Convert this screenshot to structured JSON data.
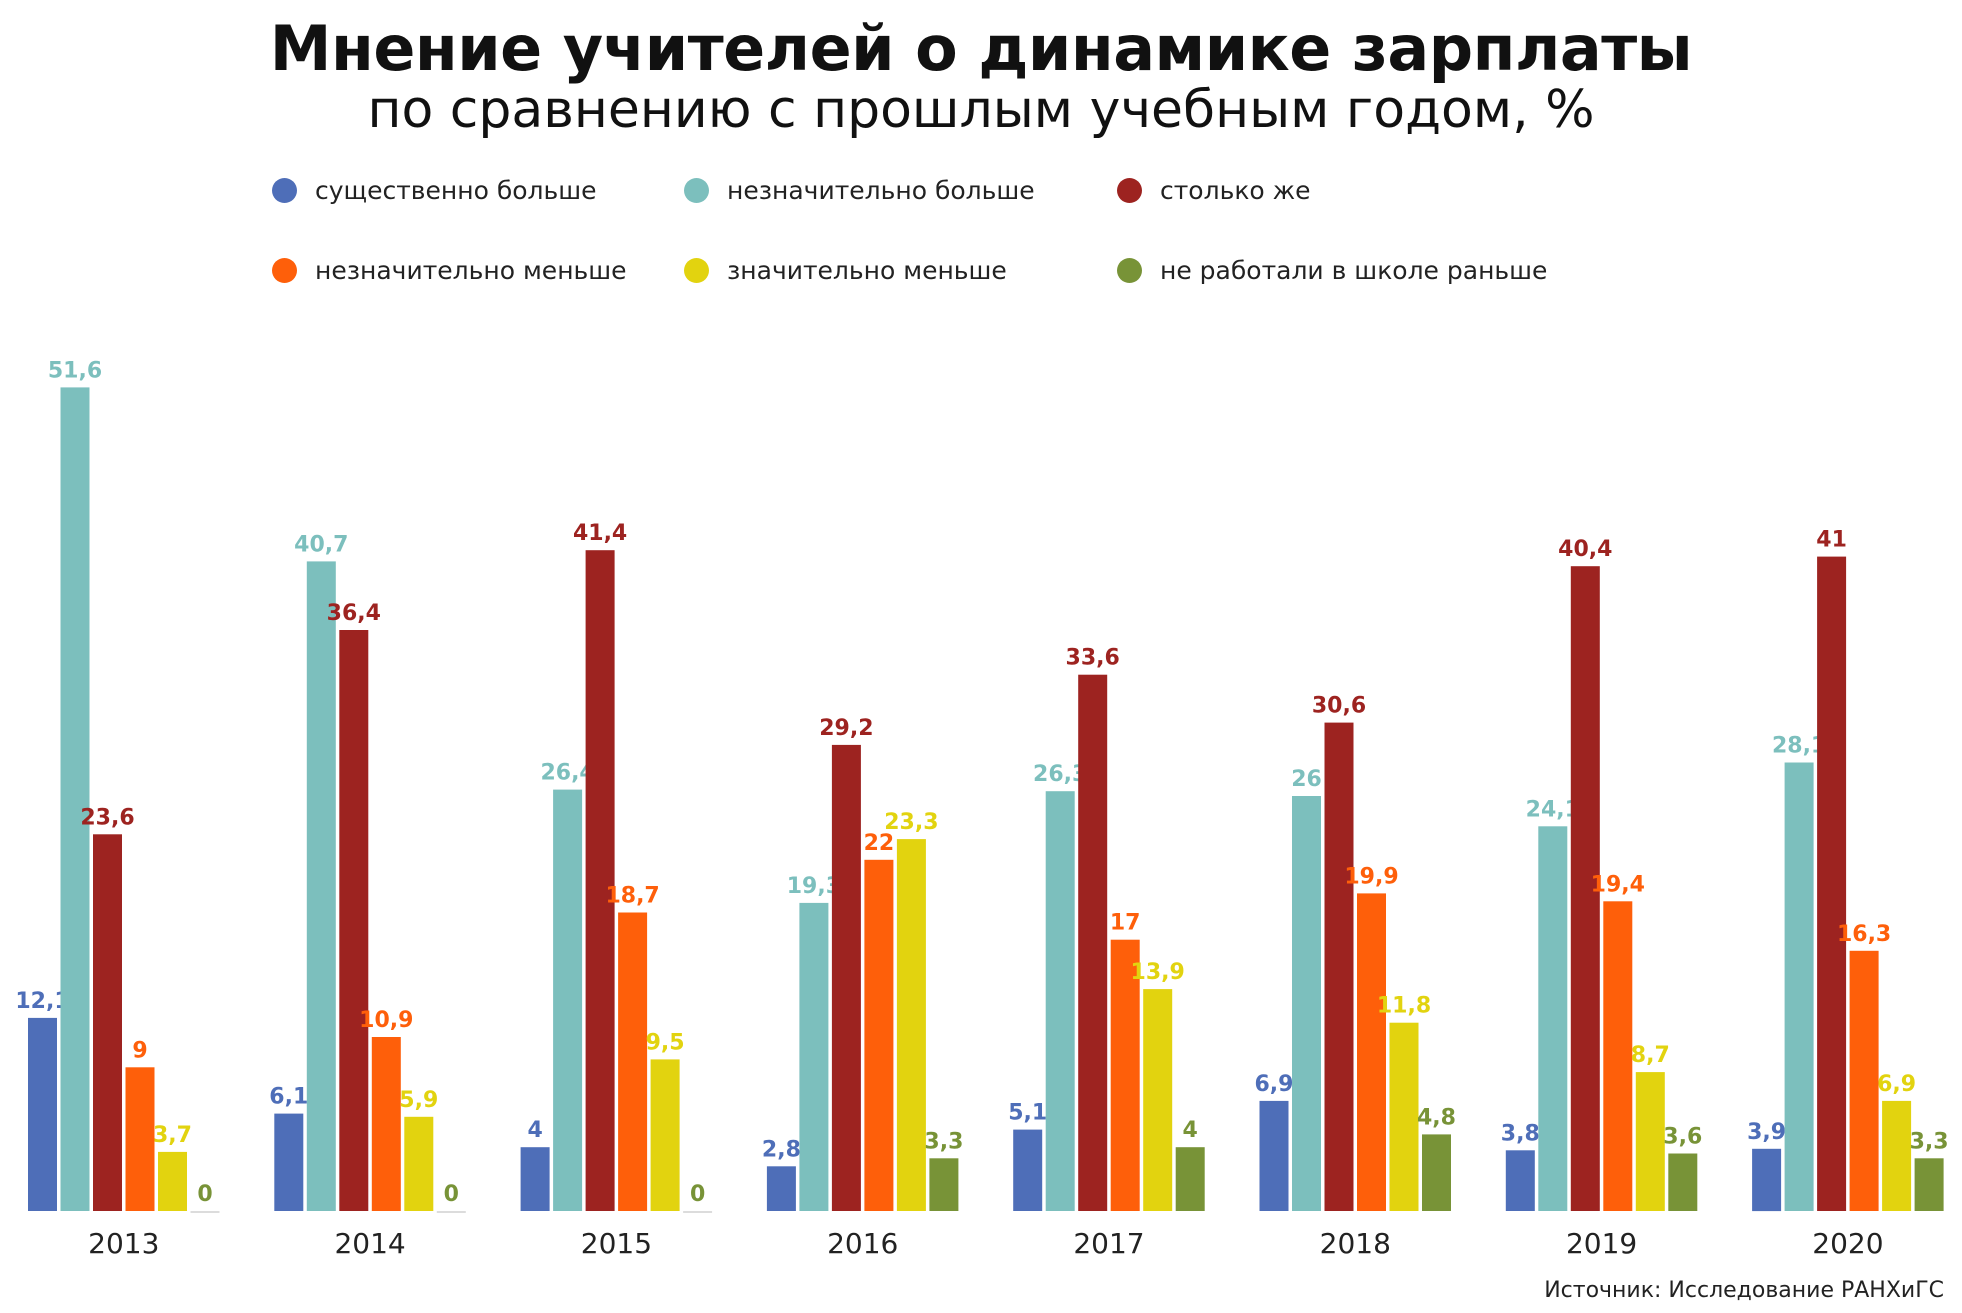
{
  "title": "Мнение учителей о динамике зарплаты",
  "subtitle": "по сравнению с прошлым учебным годом, %",
  "source": "Источник: Исследование РАНХиГС",
  "chart_data": {
    "type": "bar",
    "categories": [
      "2013",
      "2014",
      "2015",
      "2016",
      "2017",
      "2018",
      "2019",
      "2020"
    ],
    "series": [
      {
        "name": "существенно больше",
        "color": "#4e6eb8",
        "values": [
          12.1,
          6.1,
          4,
          2.8,
          5.1,
          6.9,
          3.8,
          3.9
        ],
        "labels": [
          "12,1",
          "6,1",
          "4",
          "2,8",
          "5,1",
          "6,9",
          "3,8",
          "3,9"
        ]
      },
      {
        "name": "незначительно больше",
        "color": "#7cbfbd",
        "values": [
          51.6,
          40.7,
          26.4,
          19.3,
          26.3,
          26,
          24.1,
          28.1
        ],
        "labels": [
          "51,6",
          "40,7",
          "26,4",
          "19,3",
          "26,3",
          "26",
          "24,1",
          "28,1"
        ]
      },
      {
        "name": "столько же",
        "color": "#9d2320",
        "values": [
          23.6,
          36.4,
          41.4,
          29.2,
          33.6,
          30.6,
          40.4,
          41
        ],
        "labels": [
          "23,6",
          "36,4",
          "41,4",
          "29,2",
          "33,6",
          "30,6",
          "40,4",
          "41"
        ]
      },
      {
        "name": "незначительно меньше",
        "color": "#fe5f0a",
        "values": [
          9,
          10.9,
          18.7,
          22,
          17,
          19.9,
          19.4,
          16.3
        ],
        "labels": [
          "9",
          "10,9",
          "18,7",
          "22",
          "17",
          "19,9",
          "19,4",
          "16,3"
        ]
      },
      {
        "name": "значительно меньше",
        "color": "#e2d30f",
        "values": [
          3.7,
          5.9,
          9.5,
          23.3,
          13.9,
          11.8,
          8.7,
          6.9
        ],
        "labels": [
          "3,7",
          "5,9",
          "9,5",
          "23,3",
          "13,9",
          "11,8",
          "8,7",
          "6,9"
        ]
      },
      {
        "name": "не работали в школе раньше",
        "color": "#789337",
        "values": [
          0,
          0,
          0,
          3.3,
          4,
          4.8,
          3.6,
          3.3
        ],
        "labels": [
          "0",
          "0",
          "0",
          "3,3",
          "4",
          "4,8",
          "3,6",
          "3,3"
        ]
      }
    ],
    "ylim": [
      0,
      52
    ],
    "grid": false,
    "legend": "top",
    "xlabel": "",
    "ylabel": ""
  }
}
